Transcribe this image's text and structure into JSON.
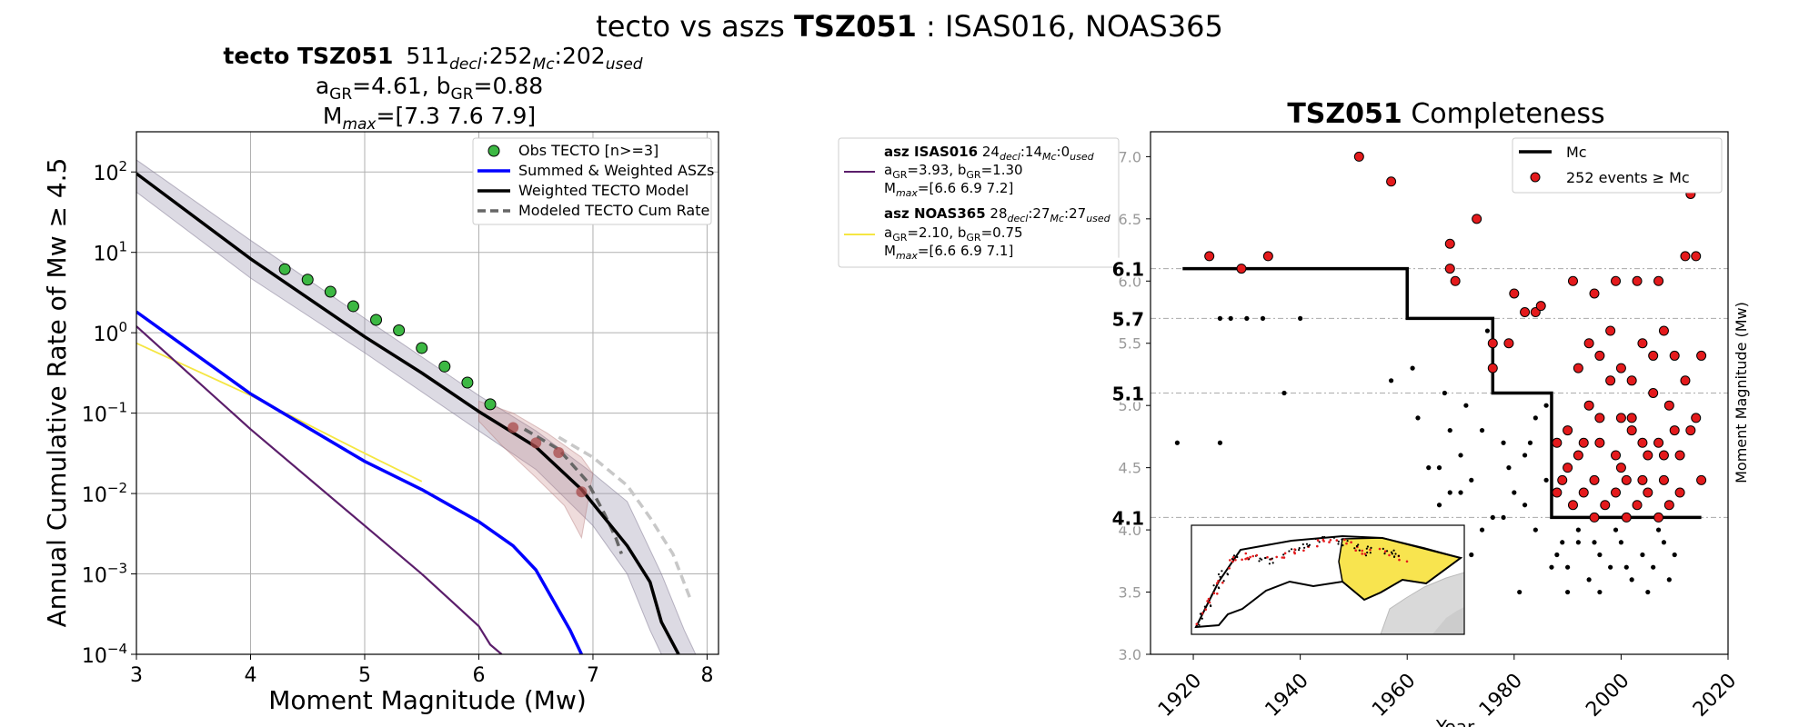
{
  "page": {
    "suptitle": {
      "prefix": "tecto vs aszs ",
      "bold": "TSZ051",
      "suffix": " : ISAS016, NOAS365"
    }
  },
  "chart_data": [
    {
      "type": "line",
      "title": {
        "line1_bold": "tecto TSZ051",
        "line1_n1": "511",
        "line1_s1": "decl",
        "line1_n2": ":252",
        "line1_s2": "Mc",
        "line1_n3": ":202",
        "line1_s3": "used",
        "line2_a": "a",
        "line2_a_sub": "GR",
        "line2_a_val": "=4.61,  b",
        "line2_b_sub": "GR",
        "line2_b_val": "=0.88",
        "line3_m": "M",
        "line3_sub": "max",
        "line3_val": "=[7.3 7.6 7.9]"
      },
      "xlabel": "Moment Magnitude (Mw)",
      "ylabel": "Annual Cumulative Rate of Mw ≥ 4.5",
      "xlim": [
        3,
        8.1
      ],
      "ylim_log10": [
        -4,
        2.5
      ],
      "yscale": "log",
      "grid": true,
      "x_ticks": [
        "3",
        "4",
        "5",
        "6",
        "7",
        "8"
      ],
      "y_ticks": [
        {
          "base": "10",
          "exp": "−4",
          "log": -4
        },
        {
          "base": "10",
          "exp": "−3",
          "log": -3
        },
        {
          "base": "10",
          "exp": "−2",
          "log": -2
        },
        {
          "base": "10",
          "exp": "−1",
          "log": -1
        },
        {
          "base": "10",
          "exp": "0",
          "log": 0
        },
        {
          "base": "10",
          "exp": "1",
          "log": 1
        },
        {
          "base": "10",
          "exp": "2",
          "log": 2
        }
      ],
      "legend": {
        "position": "top-right",
        "entries": [
          {
            "label": "Obs TECTO [n>=3]",
            "kind": "marker",
            "color": "#3cb843"
          },
          {
            "label": "Summed & Weighted ASZs",
            "kind": "line",
            "color": "#0000ff"
          },
          {
            "label": "Weighted TECTO Model",
            "kind": "line",
            "color": "#000000"
          },
          {
            "label": "Modeled TECTO Cum Rate",
            "kind": "dash",
            "color": "#666666"
          }
        ]
      },
      "band_upper": [
        [
          3,
          2.15
        ],
        [
          4,
          1.15
        ],
        [
          5,
          0.18
        ],
        [
          6,
          -0.78
        ],
        [
          6.5,
          -1.22
        ],
        [
          7,
          -1.75
        ],
        [
          7.3,
          -2.1
        ],
        [
          7.6,
          -3.0
        ],
        [
          7.8,
          -3.7
        ],
        [
          7.9,
          -4
        ]
      ],
      "band_lower": [
        [
          3,
          1.75
        ],
        [
          4,
          0.68
        ],
        [
          5,
          -0.25
        ],
        [
          6,
          -1.22
        ],
        [
          6.5,
          -1.7
        ],
        [
          7,
          -2.4
        ],
        [
          7.3,
          -3.0
        ],
        [
          7.5,
          -3.7
        ],
        [
          7.6,
          -4
        ]
      ],
      "red_band_upper": [
        [
          6.0,
          -0.85
        ],
        [
          6.3,
          -1.0
        ],
        [
          6.6,
          -1.25
        ],
        [
          6.9,
          -1.55
        ],
        [
          7.0,
          -1.75
        ]
      ],
      "red_band_lower": [
        [
          6.9,
          -2.55
        ],
        [
          6.75,
          -2.15
        ],
        [
          6.5,
          -1.8
        ],
        [
          6.2,
          -1.4
        ],
        [
          6.0,
          -1.1
        ]
      ],
      "series": [
        {
          "name": "Weighted TECTO Model",
          "color": "#000000",
          "style": "solid",
          "points": [
            [
              3,
              1.98
            ],
            [
              4,
              0.92
            ],
            [
              5,
              -0.05
            ],
            [
              5.5,
              -0.5
            ],
            [
              6,
              -0.98
            ],
            [
              6.5,
              -1.42
            ],
            [
              6.9,
              -1.95
            ],
            [
              7.1,
              -2.3
            ],
            [
              7.3,
              -2.65
            ],
            [
              7.5,
              -3.1
            ],
            [
              7.6,
              -3.6
            ],
            [
              7.75,
              -4
            ]
          ]
        },
        {
          "name": "Modeled TECTO Cum Rate",
          "color": "#666666",
          "style": "dash",
          "points": [
            [
              6.4,
              -1.2
            ],
            [
              6.7,
              -1.45
            ],
            [
              6.95,
              -1.85
            ],
            [
              7.1,
              -2.25
            ],
            [
              7.2,
              -2.55
            ],
            [
              7.25,
              -2.75
            ]
          ]
        },
        {
          "name": "",
          "color": "#c8c8c8",
          "style": "dash",
          "points": [
            [
              6.7,
              -1.3
            ],
            [
              7.0,
              -1.55
            ],
            [
              7.3,
              -1.9
            ],
            [
              7.5,
              -2.3
            ],
            [
              7.7,
              -2.75
            ],
            [
              7.85,
              -3.3
            ]
          ]
        },
        {
          "name": "Summed & Weighted ASZs",
          "color": "#0000ff",
          "style": "solid",
          "points": [
            [
              3,
              0.26
            ],
            [
              4,
              -0.76
            ],
            [
              5,
              -1.6
            ],
            [
              5.5,
              -1.95
            ],
            [
              6,
              -2.35
            ],
            [
              6.3,
              -2.65
            ],
            [
              6.5,
              -2.95
            ],
            [
              6.6,
              -3.2
            ],
            [
              6.7,
              -3.45
            ],
            [
              6.8,
              -3.7
            ],
            [
              6.9,
              -4
            ]
          ]
        },
        {
          "name": "asz ISAS016",
          "color": "#5b1e6b",
          "style": "solid",
          "points": [
            [
              3,
              0.08
            ],
            [
              4,
              -1.2
            ],
            [
              5,
              -2.4
            ],
            [
              5.5,
              -3.0
            ],
            [
              6.0,
              -3.65
            ],
            [
              6.1,
              -3.88
            ],
            [
              6.2,
              -4
            ]
          ]
        },
        {
          "name": "asz NOAS365",
          "color": "#f5e642",
          "style": "solid",
          "points": [
            [
              3,
              -0.13
            ],
            [
              4,
              -0.78
            ],
            [
              5,
              -1.5
            ],
            [
              5.5,
              -1.85
            ]
          ]
        }
      ],
      "obs_green": [
        [
          4.3,
          0.79
        ],
        [
          4.5,
          0.66
        ],
        [
          4.7,
          0.51
        ],
        [
          4.9,
          0.33
        ],
        [
          5.1,
          0.16
        ],
        [
          5.3,
          0.03
        ],
        [
          5.5,
          -0.19
        ],
        [
          5.7,
          -0.42
        ],
        [
          5.9,
          -0.62
        ],
        [
          6.1,
          -0.89
        ]
      ],
      "obs_red": [
        [
          6.3,
          -1.18
        ],
        [
          6.5,
          -1.37
        ],
        [
          6.7,
          -1.49
        ],
        [
          6.9,
          -1.98
        ]
      ]
    },
    {
      "type": "table",
      "legend_entries": [
        {
          "color": "#5b1e6b",
          "bold": "asz ISAS016",
          "n1": " 24",
          "s1": "decl",
          "n2": ":14",
          "s2": "Mc",
          "n3": ":0",
          "s3": "used",
          "a": "a",
          "a_sub": "GR",
          "a_val": "=3.93,  b",
          "b_sub": "GR",
          "b_val": "=1.30",
          "m": "M",
          "m_sub": "max",
          "m_val": "=[6.6 6.9 7.2]"
        },
        {
          "color": "#f5e642",
          "bold": "asz NOAS365",
          "n1": " 28",
          "s1": "decl",
          "n2": ":27",
          "s2": "Mc",
          "n3": ":27",
          "s3": "used",
          "a": "a",
          "a_sub": "GR",
          "a_val": "=2.10,  b",
          "b_sub": "GR",
          "b_val": "=0.75",
          "m": "M",
          "m_sub": "max",
          "m_val": "=[6.6 6.9 7.1]"
        }
      ]
    },
    {
      "type": "scatter",
      "title_bold": "TSZ051",
      "title_rest": " Completeness",
      "xlabel": "Year",
      "ylabel": "Moment Magnitude (Mw)",
      "xlim": [
        1912,
        2020
      ],
      "ylim": [
        3.0,
        7.2
      ],
      "x_ticks": [
        "1920",
        "1940",
        "1960",
        "1980",
        "2000",
        "2020"
      ],
      "y_ticks": [
        "3.0",
        "3.5",
        "4.0",
        "4.5",
        "5.0",
        "5.5",
        "6.0",
        "6.5",
        "7.0"
      ],
      "mc_levels": [
        {
          "label": "6.1",
          "value": 6.1
        },
        {
          "label": "5.7",
          "value": 5.7
        },
        {
          "label": "5.1",
          "value": 5.1
        },
        {
          "label": "4.1",
          "value": 4.1
        }
      ],
      "mc_step": [
        [
          1918,
          6.1
        ],
        [
          1960,
          6.1
        ],
        [
          1960,
          5.7
        ],
        [
          1976,
          5.7
        ],
        [
          1976,
          5.1
        ],
        [
          1987,
          5.1
        ],
        [
          1987,
          4.1
        ],
        [
          2015,
          4.1
        ]
      ],
      "legend": {
        "position": "top-right",
        "entries": [
          {
            "label": "Mc",
            "kind": "line",
            "color": "#000000"
          },
          {
            "label": "252 events ≥ Mc",
            "kind": "marker",
            "color": "#e41a1c"
          }
        ]
      },
      "red_points": [
        [
          1923,
          6.2
        ],
        [
          1929,
          6.1
        ],
        [
          1934,
          6.2
        ],
        [
          1951,
          7.0
        ],
        [
          1957,
          6.8
        ],
        [
          1968,
          6.3
        ],
        [
          1968,
          6.1
        ],
        [
          1969,
          6.0
        ],
        [
          1973,
          6.5
        ],
        [
          1980,
          5.9
        ],
        [
          1982,
          5.75
        ],
        [
          1984,
          5.75
        ],
        [
          1976,
          5.5
        ],
        [
          1976,
          5.3
        ],
        [
          1979,
          5.5
        ],
        [
          1985,
          5.8
        ],
        [
          1991,
          6.0
        ],
        [
          1995,
          5.9
        ],
        [
          1999,
          6.0
        ],
        [
          2003,
          6.0
        ],
        [
          2007,
          6.0
        ],
        [
          2012,
          6.2
        ],
        [
          2013,
          6.7
        ],
        [
          2014,
          6.2
        ],
        [
          1990,
          4.8
        ],
        [
          1992,
          4.6
        ],
        [
          1994,
          5.0
        ],
        [
          1996,
          4.7
        ],
        [
          1998,
          5.2
        ],
        [
          2000,
          4.5
        ],
        [
          2002,
          4.9
        ],
        [
          2004,
          4.4
        ],
        [
          2006,
          5.1
        ],
        [
          2008,
          4.6
        ],
        [
          2010,
          4.8
        ],
        [
          1989,
          4.4
        ],
        [
          1991,
          4.2
        ],
        [
          1993,
          4.3
        ],
        [
          1995,
          4.1
        ],
        [
          1997,
          4.2
        ],
        [
          1999,
          4.3
        ],
        [
          2001,
          4.1
        ],
        [
          2003,
          4.2
        ],
        [
          2005,
          4.3
        ],
        [
          2007,
          4.1
        ],
        [
          2009,
          4.2
        ],
        [
          2011,
          4.3
        ],
        [
          1990,
          4.5
        ],
        [
          1993,
          4.7
        ],
        [
          1996,
          4.9
        ],
        [
          1999,
          4.6
        ],
        [
          2002,
          4.8
        ],
        [
          2005,
          4.6
        ],
        [
          2008,
          4.4
        ],
        [
          2011,
          4.6
        ],
        [
          2013,
          4.8
        ],
        [
          2015,
          4.4
        ],
        [
          2015,
          5.4
        ],
        [
          2014,
          4.9
        ],
        [
          1996,
          5.4
        ],
        [
          2000,
          5.3
        ],
        [
          2004,
          5.5
        ],
        [
          2008,
          5.6
        ],
        [
          2010,
          5.4
        ],
        [
          2012,
          5.2
        ],
        [
          1992,
          5.3
        ],
        [
          1994,
          5.5
        ],
        [
          1998,
          5.6
        ],
        [
          2002,
          5.2
        ],
        [
          2006,
          5.4
        ],
        [
          1988,
          4.7
        ],
        [
          1988,
          4.3
        ],
        [
          2000,
          4.9
        ],
        [
          2004,
          4.7
        ],
        [
          2009,
          5.0
        ],
        [
          1995,
          4.4
        ],
        [
          2001,
          4.4
        ],
        [
          2007,
          4.7
        ]
      ],
      "black_points": [
        [
          1917,
          4.7
        ],
        [
          1925,
          4.7
        ],
        [
          1925,
          5.7
        ],
        [
          1927,
          5.7
        ],
        [
          1930,
          5.7
        ],
        [
          1933,
          5.7
        ],
        [
          1937,
          5.1
        ],
        [
          1940,
          5.7
        ],
        [
          1957,
          5.2
        ],
        [
          1962,
          4.9
        ],
        [
          1964,
          4.5
        ],
        [
          1966,
          4.5
        ],
        [
          1968,
          4.3
        ],
        [
          1970,
          4.6
        ],
        [
          1972,
          4.4
        ],
        [
          1974,
          4.8
        ],
        [
          1975,
          5.6
        ],
        [
          1978,
          4.7
        ],
        [
          1980,
          4.3
        ],
        [
          1982,
          4.6
        ],
        [
          1984,
          4.9
        ],
        [
          1986,
          4.4
        ],
        [
          1986,
          5.0
        ],
        [
          1988,
          3.8
        ],
        [
          1990,
          3.7
        ],
        [
          1992,
          3.9
        ],
        [
          1994,
          3.6
        ],
        [
          1996,
          3.8
        ],
        [
          1998,
          3.7
        ],
        [
          2000,
          3.9
        ],
        [
          2002,
          3.6
        ],
        [
          2004,
          3.8
        ],
        [
          2006,
          3.7
        ],
        [
          2008,
          3.9
        ],
        [
          2010,
          3.8
        ],
        [
          1990,
          3.5
        ],
        [
          1996,
          3.5
        ],
        [
          2005,
          3.5
        ],
        [
          1966,
          4.2
        ],
        [
          1970,
          4.3
        ],
        [
          1974,
          4.0
        ],
        [
          1978,
          4.1
        ],
        [
          1982,
          4.2
        ],
        [
          1963,
          4.0
        ],
        [
          1972,
          3.8
        ],
        [
          1981,
          3.5
        ],
        [
          1976,
          4.1
        ],
        [
          1984,
          4.0
        ],
        [
          1961,
          5.3
        ],
        [
          1967,
          5.1
        ],
        [
          1971,
          5.0
        ],
        [
          1987,
          3.7
        ],
        [
          1992,
          4.0
        ],
        [
          1999,
          4.0
        ],
        [
          2007,
          4.0
        ],
        [
          1989,
          3.9
        ],
        [
          1995,
          3.9
        ],
        [
          2001,
          3.7
        ],
        [
          2009,
          3.6
        ],
        [
          1968,
          4.8
        ],
        [
          1979,
          4.5
        ],
        [
          1983,
          4.7
        ]
      ],
      "inset": {
        "kind": "map",
        "regions": [
          "polygon",
          "yellow-zone",
          "land"
        ]
      }
    }
  ]
}
